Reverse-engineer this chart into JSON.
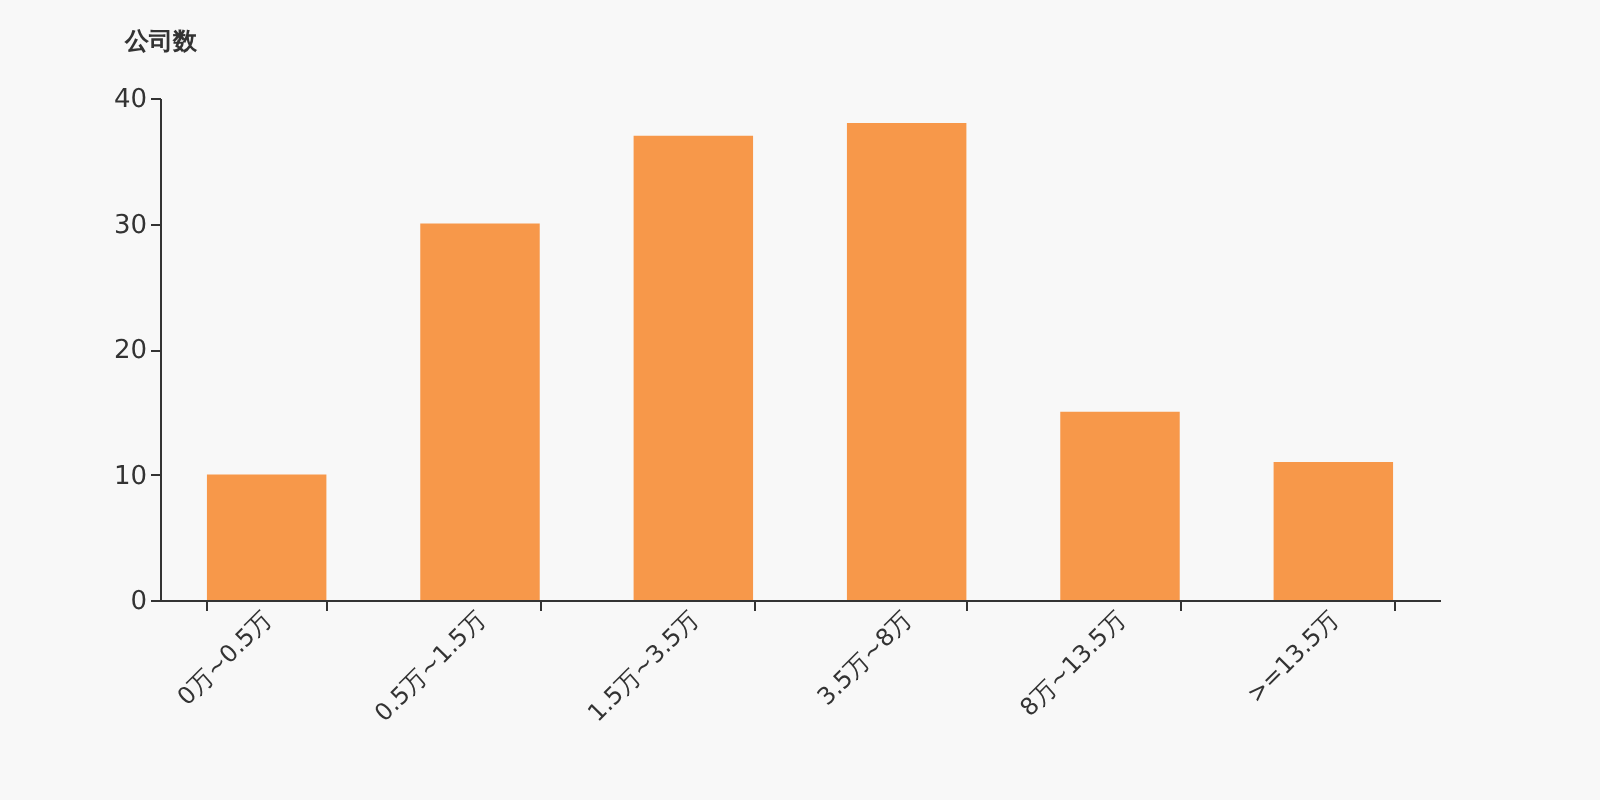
{
  "chart_data": {
    "type": "bar",
    "ylabel": "公司数",
    "categories": [
      "0万~0.5万",
      "0.5万~1.5万",
      "1.5万~3.5万",
      "3.5万~8万",
      "8万~13.5万",
      ">=13.5万"
    ],
    "values": [
      10,
      30,
      37,
      38,
      15,
      11
    ],
    "color": "#f7984a",
    "ylim": [
      0,
      40
    ],
    "yticks": [
      0,
      10,
      20,
      30,
      40
    ],
    "grid": false,
    "legend": false
  }
}
